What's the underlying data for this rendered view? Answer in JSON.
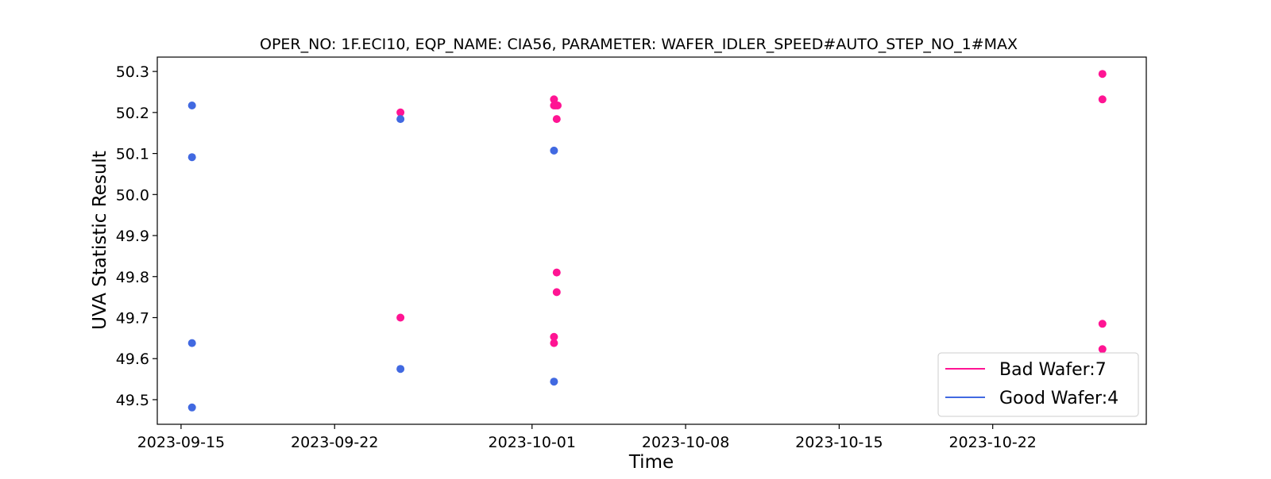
{
  "chart_data": {
    "type": "scatter",
    "title": "OPER_NO: 1F.ECI10,  EQP_NAME: CIA56,  PARAMETER: WAFER_IDLER_SPEED#AUTO_STEP_NO_1#MAX",
    "xlabel": "Time",
    "ylabel": "UVA Statistic Result",
    "x_type": "date",
    "xlim": [
      "2023-09-13 22:00",
      "2023-10-29 00:00"
    ],
    "ylim": [
      49.44,
      50.335
    ],
    "x_ticks": [
      "2023-09-15",
      "2023-09-22",
      "2023-10-01",
      "2023-10-08",
      "2023-10-15",
      "2023-10-22"
    ],
    "y_ticks": [
      49.5,
      49.6,
      49.7,
      49.8,
      49.9,
      50.0,
      50.1,
      50.2,
      50.3
    ],
    "legend_position": "lower-right",
    "grid": false,
    "series": [
      {
        "name": "Bad Wafer:7",
        "color": "#ff1493",
        "points": [
          {
            "x": "2023-09-25 00:00",
            "y": 50.2
          },
          {
            "x": "2023-09-25 00:00",
            "y": 49.7
          },
          {
            "x": "2023-10-02 00:00",
            "y": 50.232
          },
          {
            "x": "2023-10-02 00:00",
            "y": 50.217
          },
          {
            "x": "2023-10-02 02:00",
            "y": 50.217
          },
          {
            "x": "2023-10-02 04:00",
            "y": 50.217
          },
          {
            "x": "2023-10-02 03:00",
            "y": 50.184
          },
          {
            "x": "2023-10-02 03:00",
            "y": 49.81
          },
          {
            "x": "2023-10-02 03:00",
            "y": 49.762
          },
          {
            "x": "2023-10-02 00:00",
            "y": 49.653
          },
          {
            "x": "2023-10-02 00:00",
            "y": 49.638
          },
          {
            "x": "2023-10-27 00:00",
            "y": 50.294
          },
          {
            "x": "2023-10-27 00:00",
            "y": 50.232
          },
          {
            "x": "2023-10-27 00:00",
            "y": 49.685
          },
          {
            "x": "2023-10-27 00:00",
            "y": 49.623
          }
        ]
      },
      {
        "name": "Good Wafer:4",
        "color": "#4169e1",
        "points": [
          {
            "x": "2023-09-15 12:00",
            "y": 50.217
          },
          {
            "x": "2023-09-15 12:00",
            "y": 50.091
          },
          {
            "x": "2023-09-15 12:00",
            "y": 49.638
          },
          {
            "x": "2023-09-15 12:00",
            "y": 49.481
          },
          {
            "x": "2023-09-25 00:00",
            "y": 50.184
          },
          {
            "x": "2023-09-25 00:00",
            "y": 49.575
          },
          {
            "x": "2023-10-02 00:00",
            "y": 50.107
          },
          {
            "x": "2023-10-02 00:00",
            "y": 49.544
          }
        ]
      }
    ]
  }
}
